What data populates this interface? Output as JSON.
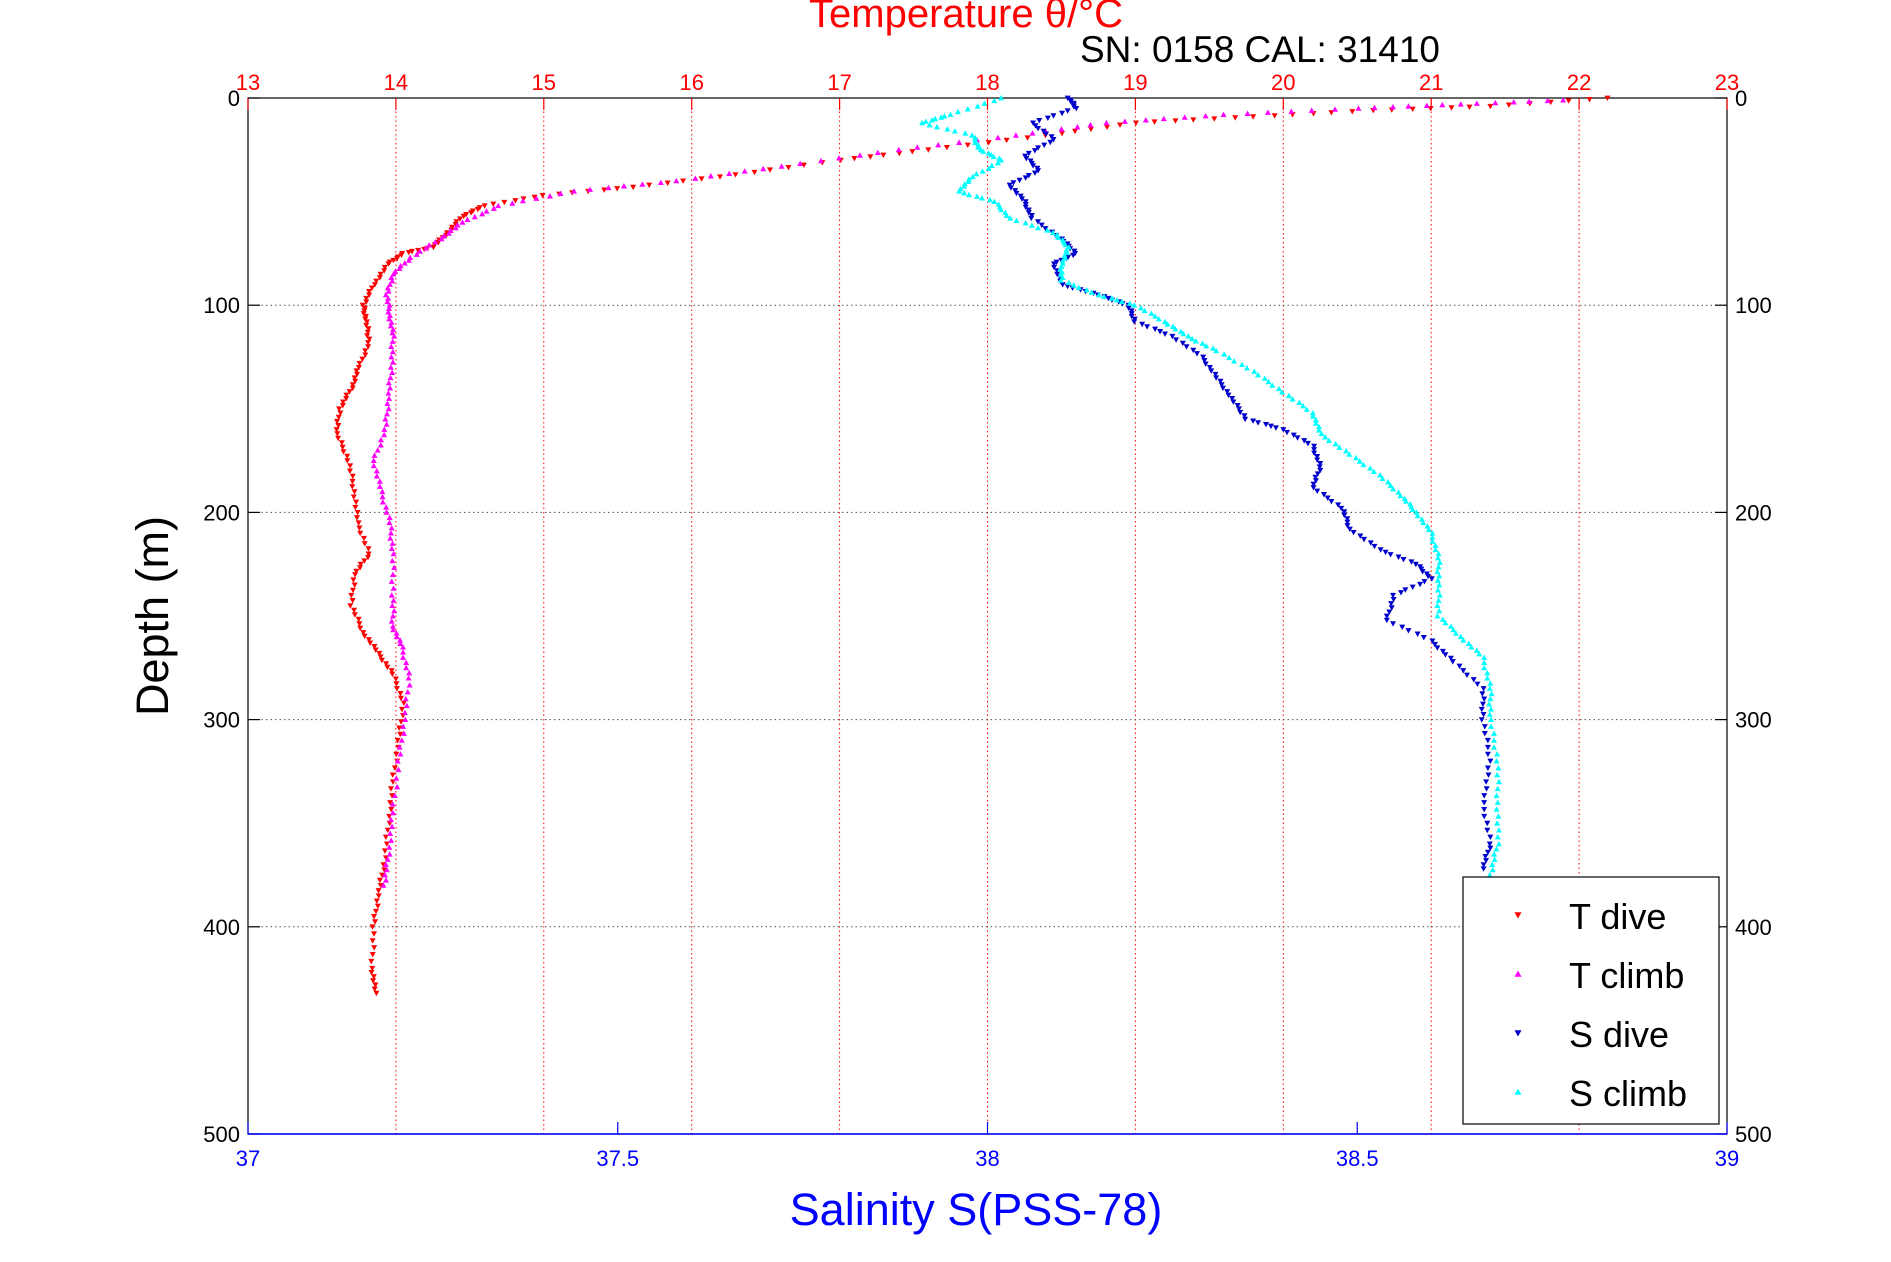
{
  "chart_data": {
    "type": "scatter",
    "title": "Temperature θ/°C",
    "subtitle": "SN: 0158  CAL: 31410",
    "ylabel": "Depth (m)",
    "xlabel": "Salinity S(PSS-78)",
    "top_axis": {
      "label": "Temperature θ/°C",
      "range": [
        13,
        23
      ],
      "ticks": [
        13,
        14,
        15,
        16,
        17,
        18,
        19,
        20,
        21,
        22,
        23
      ],
      "tick_labels": [
        "13",
        "14",
        "15",
        "16",
        "17",
        "18",
        "19",
        "20",
        "21",
        "22",
        "23"
      ]
    },
    "bottom_axis": {
      "label": "Salinity S(PSS-78)",
      "range": [
        37,
        39
      ],
      "ticks": [
        37,
        37.5,
        38,
        38.5,
        39
      ],
      "tick_labels": [
        "37",
        "37.5",
        "38",
        "38.5",
        "39"
      ]
    },
    "y_axis": {
      "label": "Depth (m)",
      "range": [
        0,
        500
      ],
      "reversed": true,
      "ticks": [
        0,
        100,
        200,
        300,
        400,
        500
      ],
      "tick_labels": [
        "0",
        "100",
        "200",
        "300",
        "400",
        "500"
      ]
    },
    "grid": true,
    "legend_position": "bottom-right",
    "colors": {
      "temperature_axis": "#ff0000",
      "salinity_axis": "#0000ff",
      "t_dive": "#ff0000",
      "t_climb": "#ff00ff",
      "s_dive": "#0000cc",
      "s_climb": "#00ffff"
    },
    "legend": [
      {
        "label": "T dive",
        "marker": "triangle-down",
        "color": "#ff0000"
      },
      {
        "label": "T climb",
        "marker": "triangle-up",
        "color": "#ff00ff"
      },
      {
        "label": "S dive",
        "marker": "triangle-down",
        "color": "#0000cc"
      },
      {
        "label": "S climb",
        "marker": "triangle-up",
        "color": "#00ffff"
      }
    ],
    "series": [
      {
        "name": "T dive",
        "axis": "temperature",
        "color": "#ff0000",
        "marker": "triangle-down",
        "points": [
          [
            22.2,
            0
          ],
          [
            21.4,
            4
          ],
          [
            20.6,
            6
          ],
          [
            19.8,
            9
          ],
          [
            19.0,
            12
          ],
          [
            18.4,
            18
          ],
          [
            17.6,
            25
          ],
          [
            17.0,
            30
          ],
          [
            16.3,
            37
          ],
          [
            15.6,
            43
          ],
          [
            15.0,
            47
          ],
          [
            14.6,
            52
          ],
          [
            14.45,
            57
          ],
          [
            14.35,
            65
          ],
          [
            14.25,
            72
          ],
          [
            14.05,
            75
          ],
          [
            13.95,
            80
          ],
          [
            13.85,
            90
          ],
          [
            13.78,
            100
          ],
          [
            13.8,
            108
          ],
          [
            13.82,
            118
          ],
          [
            13.75,
            130
          ],
          [
            13.7,
            140
          ],
          [
            13.62,
            150
          ],
          [
            13.6,
            162
          ],
          [
            13.68,
            175
          ],
          [
            13.72,
            190
          ],
          [
            13.74,
            205
          ],
          [
            13.82,
            220
          ],
          [
            13.72,
            230
          ],
          [
            13.7,
            245
          ],
          [
            13.78,
            258
          ],
          [
            13.88,
            268
          ],
          [
            13.98,
            278
          ],
          [
            14.05,
            292
          ],
          [
            14.02,
            310
          ],
          [
            13.98,
            330
          ],
          [
            13.95,
            350
          ],
          [
            13.92,
            370
          ],
          [
            13.88,
            385
          ],
          [
            13.85,
            400
          ],
          [
            13.84,
            420
          ],
          [
            13.86,
            432
          ]
        ]
      },
      {
        "name": "T climb",
        "axis": "temperature",
        "color": "#ff00ff",
        "marker": "triangle-up",
        "points": [
          [
            21.9,
            1
          ],
          [
            21.2,
            3
          ],
          [
            20.5,
            5
          ],
          [
            19.6,
            8
          ],
          [
            18.8,
            12
          ],
          [
            18.2,
            18
          ],
          [
            17.4,
            25
          ],
          [
            16.6,
            33
          ],
          [
            15.9,
            40
          ],
          [
            15.2,
            45
          ],
          [
            14.7,
            52
          ],
          [
            14.45,
            60
          ],
          [
            14.3,
            68
          ],
          [
            14.1,
            77
          ],
          [
            13.98,
            85
          ],
          [
            13.94,
            95
          ],
          [
            13.96,
            105
          ],
          [
            13.98,
            115
          ],
          [
            13.97,
            130
          ],
          [
            13.95,
            145
          ],
          [
            13.93,
            160
          ],
          [
            13.85,
            175
          ],
          [
            13.9,
            190
          ],
          [
            13.96,
            205
          ],
          [
            13.98,
            220
          ],
          [
            13.98,
            240
          ],
          [
            13.98,
            255
          ],
          [
            14.04,
            265
          ],
          [
            14.09,
            280
          ],
          [
            14.06,
            300
          ],
          [
            14.02,
            320
          ],
          [
            13.98,
            345
          ],
          [
            13.95,
            365
          ],
          [
            13.92,
            380
          ]
        ]
      },
      {
        "name": "S dive",
        "axis": "salinity",
        "color": "#0000cc",
        "marker": "triangle-down",
        "points": [
          [
            38.11,
            0
          ],
          [
            38.12,
            5
          ],
          [
            38.06,
            12
          ],
          [
            38.09,
            20
          ],
          [
            38.05,
            28
          ],
          [
            38.07,
            35
          ],
          [
            38.03,
            42
          ],
          [
            38.05,
            50
          ],
          [
            38.06,
            58
          ],
          [
            38.1,
            68
          ],
          [
            38.12,
            75
          ],
          [
            38.09,
            80
          ],
          [
            38.1,
            90
          ],
          [
            38.15,
            95
          ],
          [
            38.19,
            100
          ],
          [
            38.2,
            108
          ],
          [
            38.25,
            115
          ],
          [
            38.29,
            125
          ],
          [
            38.31,
            135
          ],
          [
            38.33,
            145
          ],
          [
            38.35,
            155
          ],
          [
            38.4,
            160
          ],
          [
            38.44,
            168
          ],
          [
            38.45,
            178
          ],
          [
            38.44,
            188
          ],
          [
            38.48,
            198
          ],
          [
            38.49,
            208
          ],
          [
            38.53,
            218
          ],
          [
            38.58,
            225
          ],
          [
            38.6,
            232
          ],
          [
            38.55,
            240
          ],
          [
            38.54,
            252
          ],
          [
            38.6,
            262
          ],
          [
            38.63,
            272
          ],
          [
            38.67,
            285
          ],
          [
            38.67,
            300
          ],
          [
            38.68,
            320
          ],
          [
            38.67,
            340
          ],
          [
            38.68,
            360
          ],
          [
            38.67,
            372
          ]
        ]
      },
      {
        "name": "S climb",
        "axis": "salinity",
        "color": "#00ffff",
        "marker": "triangle-up",
        "points": [
          [
            38.02,
            0
          ],
          [
            37.95,
            8
          ],
          [
            37.91,
            12
          ],
          [
            37.98,
            18
          ],
          [
            37.99,
            25
          ],
          [
            38.02,
            30
          ],
          [
            37.98,
            38
          ],
          [
            37.96,
            45
          ],
          [
            38.01,
            50
          ],
          [
            38.03,
            58
          ],
          [
            38.09,
            65
          ],
          [
            38.11,
            72
          ],
          [
            38.1,
            80
          ],
          [
            38.1,
            88
          ],
          [
            38.15,
            95
          ],
          [
            38.2,
            100
          ],
          [
            38.24,
            108
          ],
          [
            38.27,
            115
          ],
          [
            38.31,
            122
          ],
          [
            38.36,
            132
          ],
          [
            38.4,
            142
          ],
          [
            38.44,
            152
          ],
          [
            38.45,
            162
          ],
          [
            38.49,
            172
          ],
          [
            38.53,
            182
          ],
          [
            38.56,
            192
          ],
          [
            38.58,
            200
          ],
          [
            38.6,
            210
          ],
          [
            38.61,
            222
          ],
          [
            38.61,
            235
          ],
          [
            38.61,
            250
          ],
          [
            38.64,
            260
          ],
          [
            38.67,
            270
          ],
          [
            38.68,
            285
          ],
          [
            38.68,
            300
          ],
          [
            38.69,
            320
          ],
          [
            38.69,
            340
          ],
          [
            38.69,
            360
          ],
          [
            38.68,
            375
          ]
        ]
      }
    ]
  }
}
